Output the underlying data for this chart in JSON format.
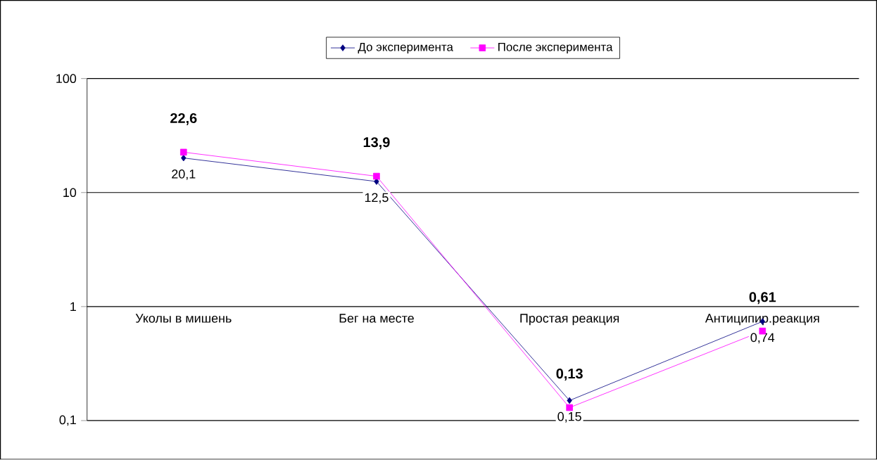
{
  "chart_data": {
    "type": "line",
    "log": "y",
    "grid": "y",
    "legend": "top",
    "categories": [
      "Уколы в мишень",
      "Бег на месте",
      "Простая реакция",
      "Антиципир.реакция"
    ],
    "ylim": [
      0.1,
      100
    ],
    "yticks": [
      {
        "value": 0.1,
        "label": "0,1"
      },
      1,
      10,
      100
    ],
    "series": [
      {
        "name": "До эксперимента",
        "color": "#000080",
        "marker": "diamond",
        "values": [
          20.1,
          12.5,
          0.15,
          0.74
        ],
        "value_labels": [
          "20,1",
          "12,5",
          "0,15",
          "0,74"
        ]
      },
      {
        "name": "После эксперимента",
        "color": "#ff00ff",
        "marker": "square",
        "values": [
          22.6,
          13.9,
          0.13,
          0.61
        ],
        "value_labels": [
          "**22,6**",
          "**13,9**",
          "**0,13**",
          "**0,61**"
        ]
      }
    ]
  }
}
